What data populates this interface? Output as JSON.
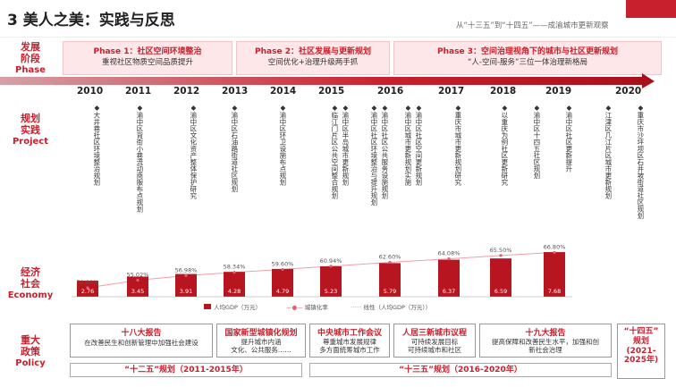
{
  "header": {
    "title": "3 美人之美：实践与反思",
    "subtitle": "从“十三五”到“十四五”——成渝城市更新观察"
  },
  "rows": {
    "phase_zh": "发展\n阶段",
    "phase_en": "Phase",
    "proj_zh": "规划\n实践",
    "proj_en": "Project",
    "econ_zh": "经济\n社会",
    "econ_en": "Economy",
    "policy_zh": "重大\n政策",
    "policy_en": "Policy"
  },
  "phases": [
    {
      "head": "Phase 1：社区空间环境整治",
      "desc": "重视社区物质空间品质提升"
    },
    {
      "head": "Phase 2：社区发展与更新规划",
      "desc": "空间优化+治理升级两手抓"
    },
    {
      "head": "Phase 3：空间治理视角下的城市与社区更新规划",
      "desc": "“人-空间-服务”三位一体治理新格局"
    }
  ],
  "years": [
    "2010",
    "2011",
    "2012",
    "2013",
    "2014",
    "2015",
    "2016",
    "2017",
    "2018",
    "2019",
    "2020"
  ],
  "projects": [
    "◆大井巷社区环境整治规划",
    "◆渝中区背街小巷流动商服布点规划",
    "◆渝中区文化资产整体保护研究",
    "◆渝中区石油路街道社区规划",
    "◆渝中区环卫设施布点规划",
    "◆临江门片区公共空间整合规划",
    "◆渝中区半岛城市更新规划",
    "◆渝中区社区环境整治与提升规划",
    "◆渝中区社区公共服务设施规划",
    "◆渝中区城市更新规划实施",
    "◆渝中区社区空间更新规划",
    "◆重庆市城市更新规划研究",
    "◆以重庆为例社区更新研究",
    "◆渝中区十四五社区规划",
    "◆渝中区社区更新提升",
    "◆江津区几江片区城市更新规划",
    "◆重庆市沙坪坝区石井坡街道社区规划"
  ],
  "chart_data": {
    "type": "bar",
    "categories": [
      "2010",
      "2011",
      "2012",
      "2013",
      "2014",
      "2015",
      "2016",
      "2017",
      "2018",
      "2019"
    ],
    "series": [
      {
        "name": "人均GDP（万元）",
        "values": [
          2.76,
          3.45,
          3.91,
          4.28,
          4.79,
          5.23,
          5.79,
          6.37,
          6.59,
          7.68
        ]
      },
      {
        "name": "城镇化率",
        "values": [
          51.8,
          55.02,
          56.98,
          58.34,
          59.6,
          60.94,
          62.6,
          64.08,
          65.5,
          66.8
        ]
      }
    ],
    "pct_labels": [
      "51.80%",
      "55.02%",
      "56.98%",
      "58.34%",
      "59.60%",
      "60.94%",
      "62.60%",
      "64.08%",
      "65.50%",
      "66.80%"
    ],
    "bar_labels": [
      "2.76",
      "3.45",
      "3.91",
      "4.28",
      "4.79",
      "5.23",
      "5.79",
      "6.37",
      "6.59",
      "7.68"
    ],
    "legend": [
      "人均GDP（万元）",
      "城镇化率",
      "线性（人均GDP（万元））"
    ]
  },
  "policies": [
    {
      "head": "十八大报告",
      "desc": "在改善民生和创新管理中加强社会建设"
    },
    {
      "head": "国家新型城镇化规划",
      "desc": "提升城市内涵\n文化、公共服务……"
    },
    {
      "head": "中央城市工作会议",
      "desc": "尊重城市发展规律\n多方面统筹城市工作"
    },
    {
      "head": "人居三新城市议程",
      "desc": "可持续发展目标\n可持续城市和社区"
    },
    {
      "head": "十九大报告",
      "desc": "提高保障和改善民生水平，加强和创\n新社会治理"
    },
    {
      "head": "“十四五”\n规划\n(2021-\n2025年)",
      "desc": ""
    }
  ],
  "plans": [
    "“十二五”规划（2011-2015年）",
    "“十三五”规划（2016-2020年）"
  ]
}
